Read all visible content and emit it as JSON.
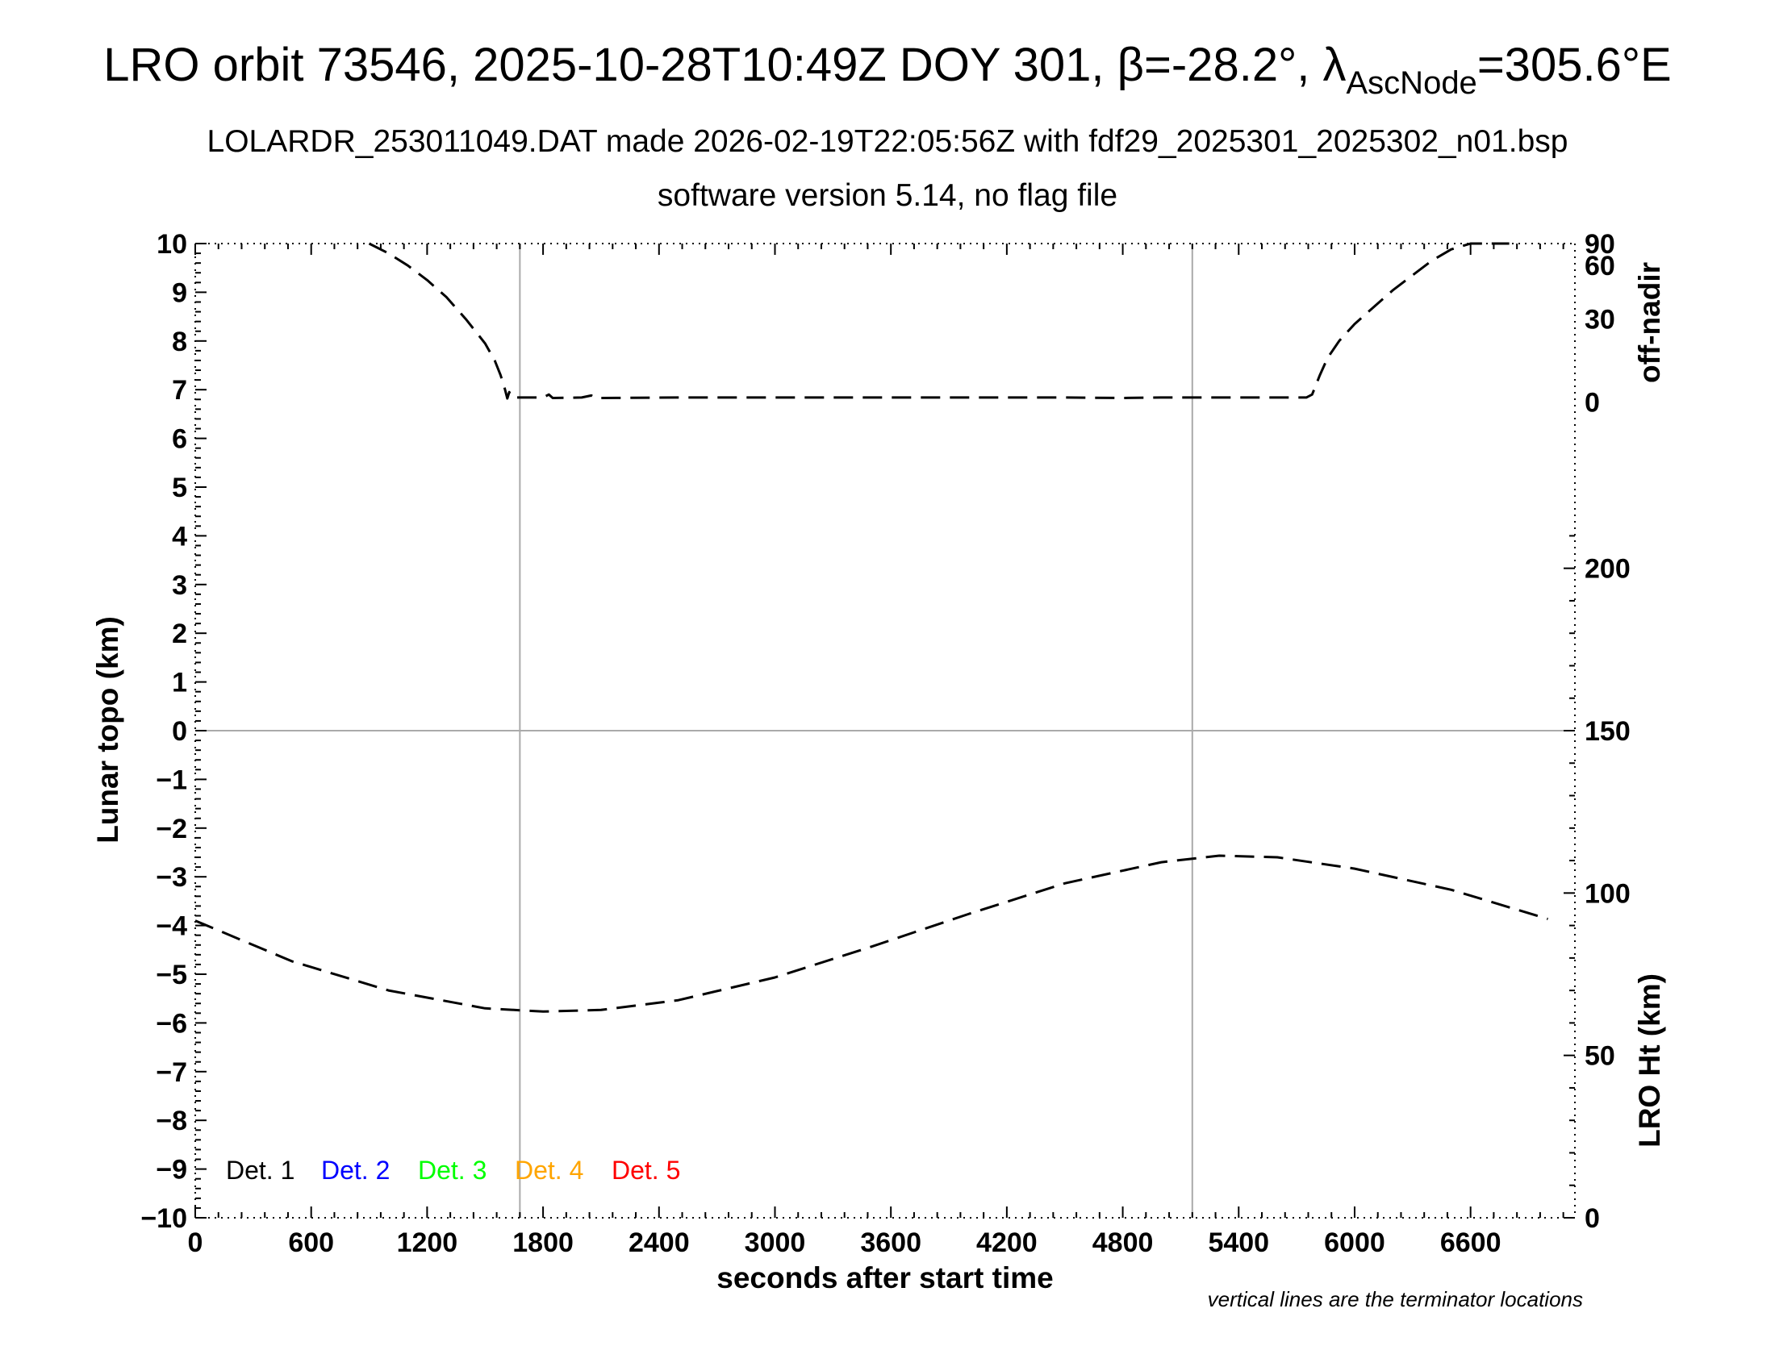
{
  "header": {
    "title_main": "LRO orbit 73546, 2025-10-28T10:49Z DOY 301, β=-28.2°, λ",
    "title_sub": "AscNode",
    "title_end": "=305.6°E",
    "subtitle1": "LOLARDR_253011049.DAT made 2026-02-19T22:05:56Z with fdf29_2025301_2025302_n01.bsp",
    "subtitle2": "software version 5.14, no flag file"
  },
  "footnote": "vertical lines are the terminator locations",
  "chart_data": {
    "type": "line",
    "xlabel": "seconds after start time",
    "ylabel": "Lunar topo (km)",
    "xlim": [
      0,
      7140
    ],
    "ylim": [
      -10,
      10
    ],
    "x_ticks": [
      0,
      600,
      1200,
      1800,
      2400,
      3000,
      3600,
      4200,
      4800,
      5400,
      6000,
      6600
    ],
    "y_ticks": [
      10,
      9,
      8,
      7,
      6,
      5,
      4,
      3,
      2,
      1,
      0,
      -1,
      -2,
      -3,
      -4,
      -5,
      -6,
      -7,
      -8,
      -9,
      -10
    ],
    "terminators": [
      1680,
      5160
    ],
    "right_axis_top": {
      "label": "off-nadir",
      "ticks": [
        90,
        60,
        30,
        0
      ],
      "tick_topo": [
        10,
        9.55,
        8.45,
        6.75
      ]
    },
    "right_axis_bottom": {
      "label": "LRO Ht (km)",
      "ylim": [
        0,
        300
      ],
      "ticks": [
        200,
        150,
        100,
        50,
        0
      ]
    },
    "legend": [
      {
        "label": "Det. 1",
        "color": "#000000"
      },
      {
        "label": "Det. 2",
        "color": "#0000ff"
      },
      {
        "label": "Det. 3",
        "color": "#00ff00"
      },
      {
        "label": "Det. 4",
        "color": "#ffa500"
      },
      {
        "label": "Det. 5",
        "color": "#ff0000"
      }
    ],
    "series": [
      {
        "key": "off_nadir",
        "color": "#000000",
        "points": [
          [
            900,
            10.0
          ],
          [
            1000,
            9.8
          ],
          [
            1100,
            9.55
          ],
          [
            1200,
            9.25
          ],
          [
            1300,
            8.9
          ],
          [
            1400,
            8.45
          ],
          [
            1500,
            7.95
          ],
          [
            1550,
            7.6
          ],
          [
            1580,
            7.3
          ],
          [
            1600,
            7.05
          ],
          [
            1615,
            6.82
          ],
          [
            1625,
            6.95
          ],
          [
            1640,
            6.84
          ],
          [
            1700,
            6.84
          ],
          [
            1800,
            6.84
          ],
          [
            1830,
            6.9
          ],
          [
            1850,
            6.83
          ],
          [
            2000,
            6.84
          ],
          [
            2050,
            6.88
          ],
          [
            2070,
            6.83
          ],
          [
            2500,
            6.84
          ],
          [
            3000,
            6.84
          ],
          [
            3500,
            6.84
          ],
          [
            4000,
            6.84
          ],
          [
            4500,
            6.84
          ],
          [
            4800,
            6.83
          ],
          [
            5000,
            6.84
          ],
          [
            5500,
            6.84
          ],
          [
            5750,
            6.84
          ],
          [
            5780,
            6.9
          ],
          [
            5820,
            7.3
          ],
          [
            5860,
            7.65
          ],
          [
            5920,
            8.0
          ],
          [
            6000,
            8.35
          ],
          [
            6100,
            8.7
          ],
          [
            6200,
            9.05
          ],
          [
            6300,
            9.35
          ],
          [
            6400,
            9.65
          ],
          [
            6500,
            9.88
          ],
          [
            6600,
            10.0
          ],
          [
            6700,
            10.0
          ],
          [
            6800,
            10.0
          ]
        ]
      },
      {
        "key": "lro_height",
        "color": "#000000",
        "points": [
          [
            0,
            91.5
          ],
          [
            500,
            79
          ],
          [
            1000,
            70
          ],
          [
            1500,
            64.5
          ],
          [
            1800,
            63.5
          ],
          [
            2100,
            64
          ],
          [
            2500,
            67
          ],
          [
            3000,
            74
          ],
          [
            3500,
            83.5
          ],
          [
            4000,
            93.5
          ],
          [
            4500,
            103
          ],
          [
            5000,
            109.5
          ],
          [
            5300,
            111.5
          ],
          [
            5600,
            111
          ],
          [
            6000,
            107.5
          ],
          [
            6500,
            101
          ],
          [
            7000,
            92
          ]
        ]
      }
    ]
  }
}
